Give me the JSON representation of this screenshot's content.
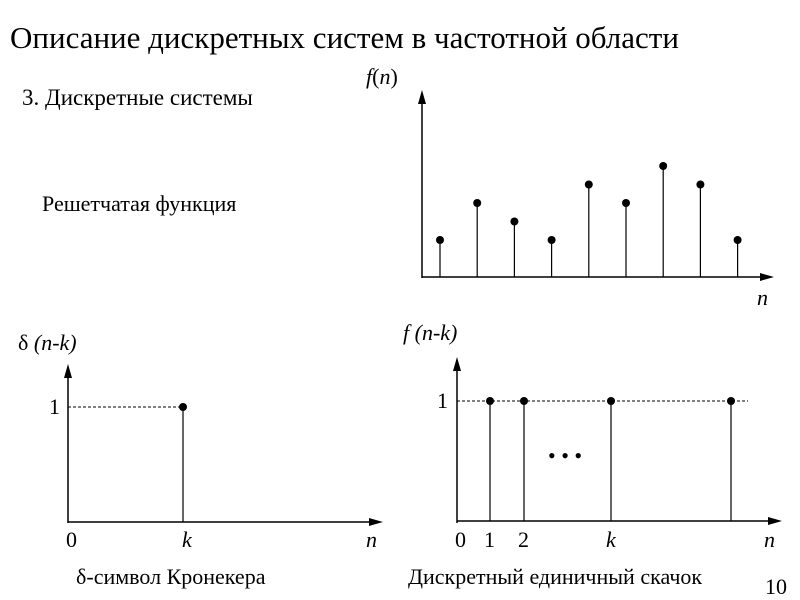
{
  "title": "Описание дискретных систем в частотной области",
  "subtitle": "3. Дискретные системы",
  "lattice_label": "Решетчатая функция",
  "caption_delta": "δ-символ Кронекера",
  "caption_step": "Дискретный единичный скачок",
  "page_number": "10",
  "top_chart": {
    "y_label_f": "f",
    "y_label_open": "(",
    "y_label_n": "n",
    "y_label_close": ")",
    "x_label": "n",
    "samples": [
      2,
      4,
      3,
      2,
      5,
      4,
      6,
      5,
      2
    ]
  },
  "delta_chart": {
    "y_label_delta": "δ",
    "y_label_args": "(n-k)",
    "y_tick": "1",
    "x_origin": "0",
    "x_k": "k",
    "x_label": "n"
  },
  "step_chart": {
    "y_label": "f (n-k)",
    "y_tick": "1",
    "x_origin": "0",
    "x_one": "1",
    "x_two": "2",
    "x_k": "k",
    "x_label": "n",
    "ellipsis": "• • •"
  }
}
